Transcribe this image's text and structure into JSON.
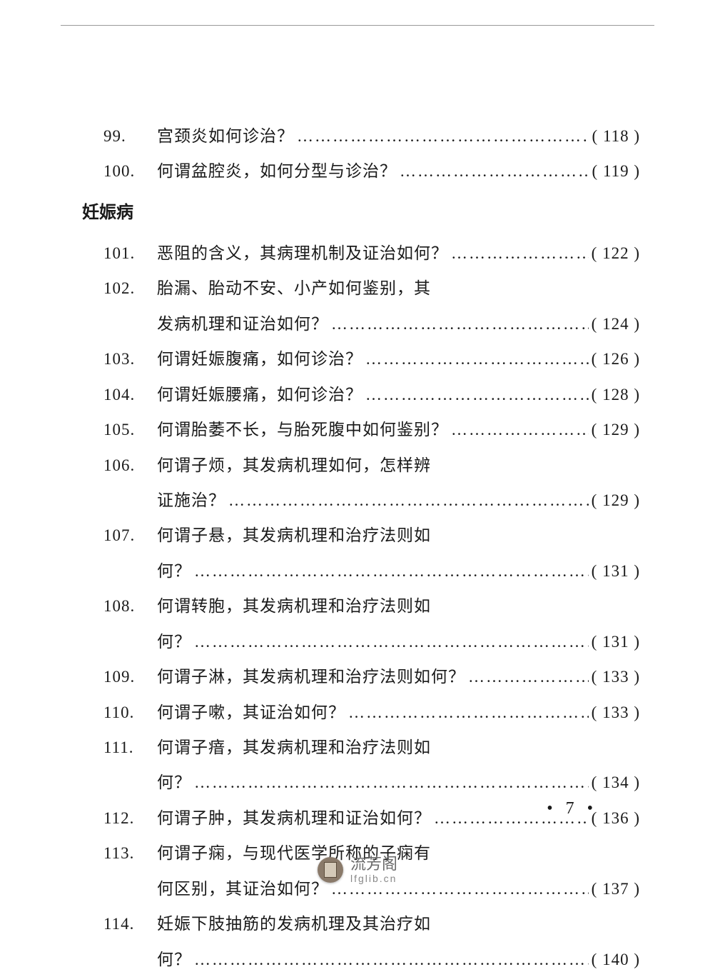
{
  "section_header": "妊娠病",
  "entries": [
    {
      "num": "99.",
      "lines": [
        "宫颈炎如何诊治？"
      ],
      "page": "118"
    },
    {
      "num": "100.",
      "lines": [
        "何谓盆腔炎，如何分型与诊治？"
      ],
      "page": "119"
    },
    {
      "section": true
    },
    {
      "num": "101.",
      "lines": [
        "恶阻的含义，其病理机制及证治如何？"
      ],
      "page": "122"
    },
    {
      "num": "102.",
      "lines": [
        "胎漏、胎动不安、小产如何鉴别，其",
        "发病机理和证治如何？"
      ],
      "page": "124"
    },
    {
      "num": "103.",
      "lines": [
        "何谓妊娠腹痛，如何诊治？"
      ],
      "page": "126"
    },
    {
      "num": "104.",
      "lines": [
        "何谓妊娠腰痛，如何诊治？"
      ],
      "page": "128"
    },
    {
      "num": "105.",
      "lines": [
        "何谓胎萎不长，与胎死腹中如何鉴别？"
      ],
      "page": "129"
    },
    {
      "num": "106.",
      "lines": [
        "何谓子烦，其发病机理如何，怎样辨",
        "证施治？"
      ],
      "page": "129"
    },
    {
      "num": "107.",
      "lines": [
        "何谓子悬，其发病机理和治疗法则如",
        "何？"
      ],
      "page": "131"
    },
    {
      "num": "108.",
      "lines": [
        "何谓转胞，其发病机理和治疗法则如",
        "何？"
      ],
      "page": "131"
    },
    {
      "num": "109.",
      "lines": [
        "何谓子淋，其发病机理和治疗法则如何？"
      ],
      "page": "133"
    },
    {
      "num": "110.",
      "lines": [
        "何谓子嗽，其证治如何？"
      ],
      "page": "133"
    },
    {
      "num": "111.",
      "lines": [
        "何谓子瘖，其发病机理和治疗法则如",
        "何？"
      ],
      "page": "134"
    },
    {
      "num": "112.",
      "lines": [
        "何谓子肿，其发病机理和证治如何？"
      ],
      "page": "136"
    },
    {
      "num": "113.",
      "lines": [
        "何谓子痫，与现代医学所称的子痫有",
        "何区别，其证治如何？"
      ],
      "page": "137"
    },
    {
      "num": "114.",
      "lines": [
        "妊娠下肢抽筋的发病机理及其治疗如",
        "何？"
      ],
      "page": "140"
    }
  ],
  "page_number": "• 7 •",
  "watermark": {
    "title": "流芳阁",
    "url": "lfglib.cn"
  }
}
